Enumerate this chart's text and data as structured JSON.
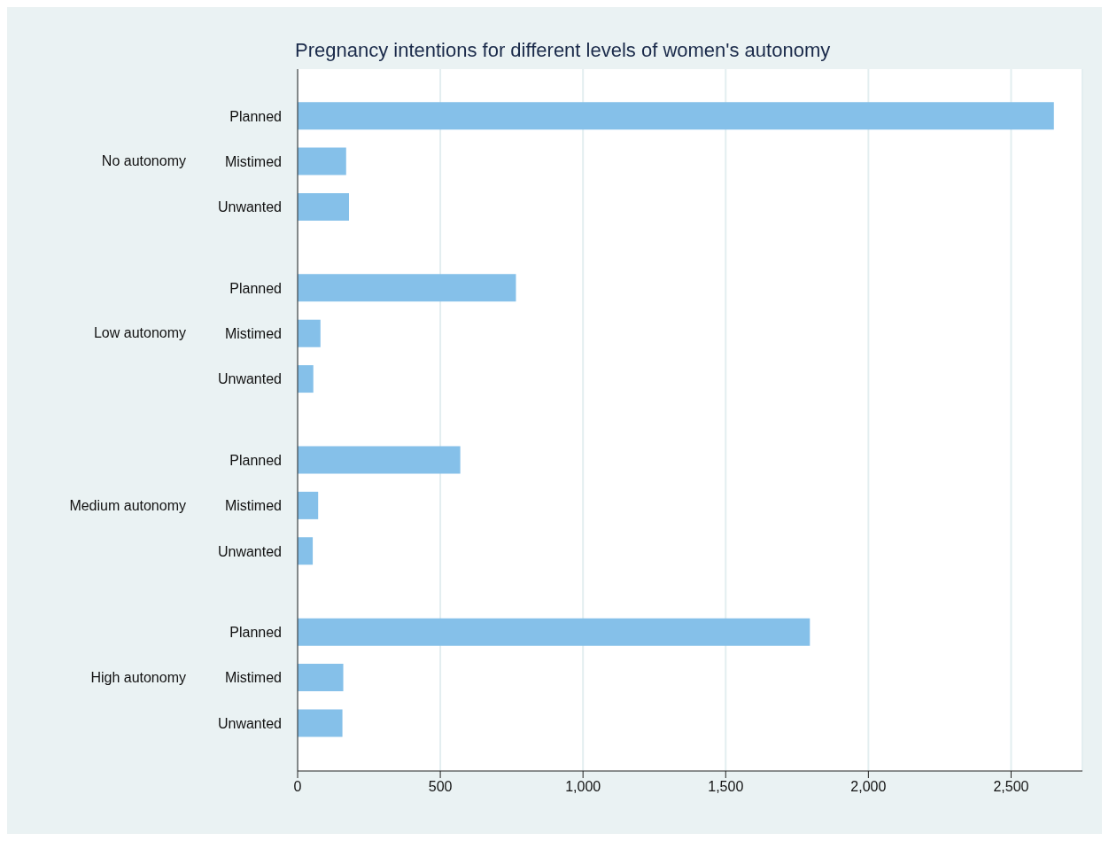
{
  "chart_data": {
    "type": "bar",
    "orientation": "horizontal",
    "title": "Pregnancy intentions for different levels of women's autonomy",
    "categories": [
      "Planned",
      "Mistimed",
      "Unwanted",
      "Planned",
      "Mistimed",
      "Unwanted",
      "Planned",
      "Mistimed",
      "Unwanted",
      "Planned",
      "Mistimed",
      "Unwanted"
    ],
    "values": [
      2650,
      170,
      180,
      765,
      80,
      55,
      570,
      72,
      53,
      1795,
      160,
      157
    ],
    "color": "#85c0e9",
    "xlim": [
      0,
      2750
    ],
    "xticks": [
      0,
      500,
      {
        "value": 1000,
        "label": "1,000"
      },
      {
        "value": 1500,
        "label": "1,500"
      },
      {
        "value": 2000,
        "label": "2,000"
      },
      {
        "value": 2500,
        "label": "2,500"
      }
    ],
    "grid": "x",
    "annotations": [
      "No autonomy",
      "Low autonomy",
      "Medium autonomy",
      "High autonomy"
    ]
  }
}
